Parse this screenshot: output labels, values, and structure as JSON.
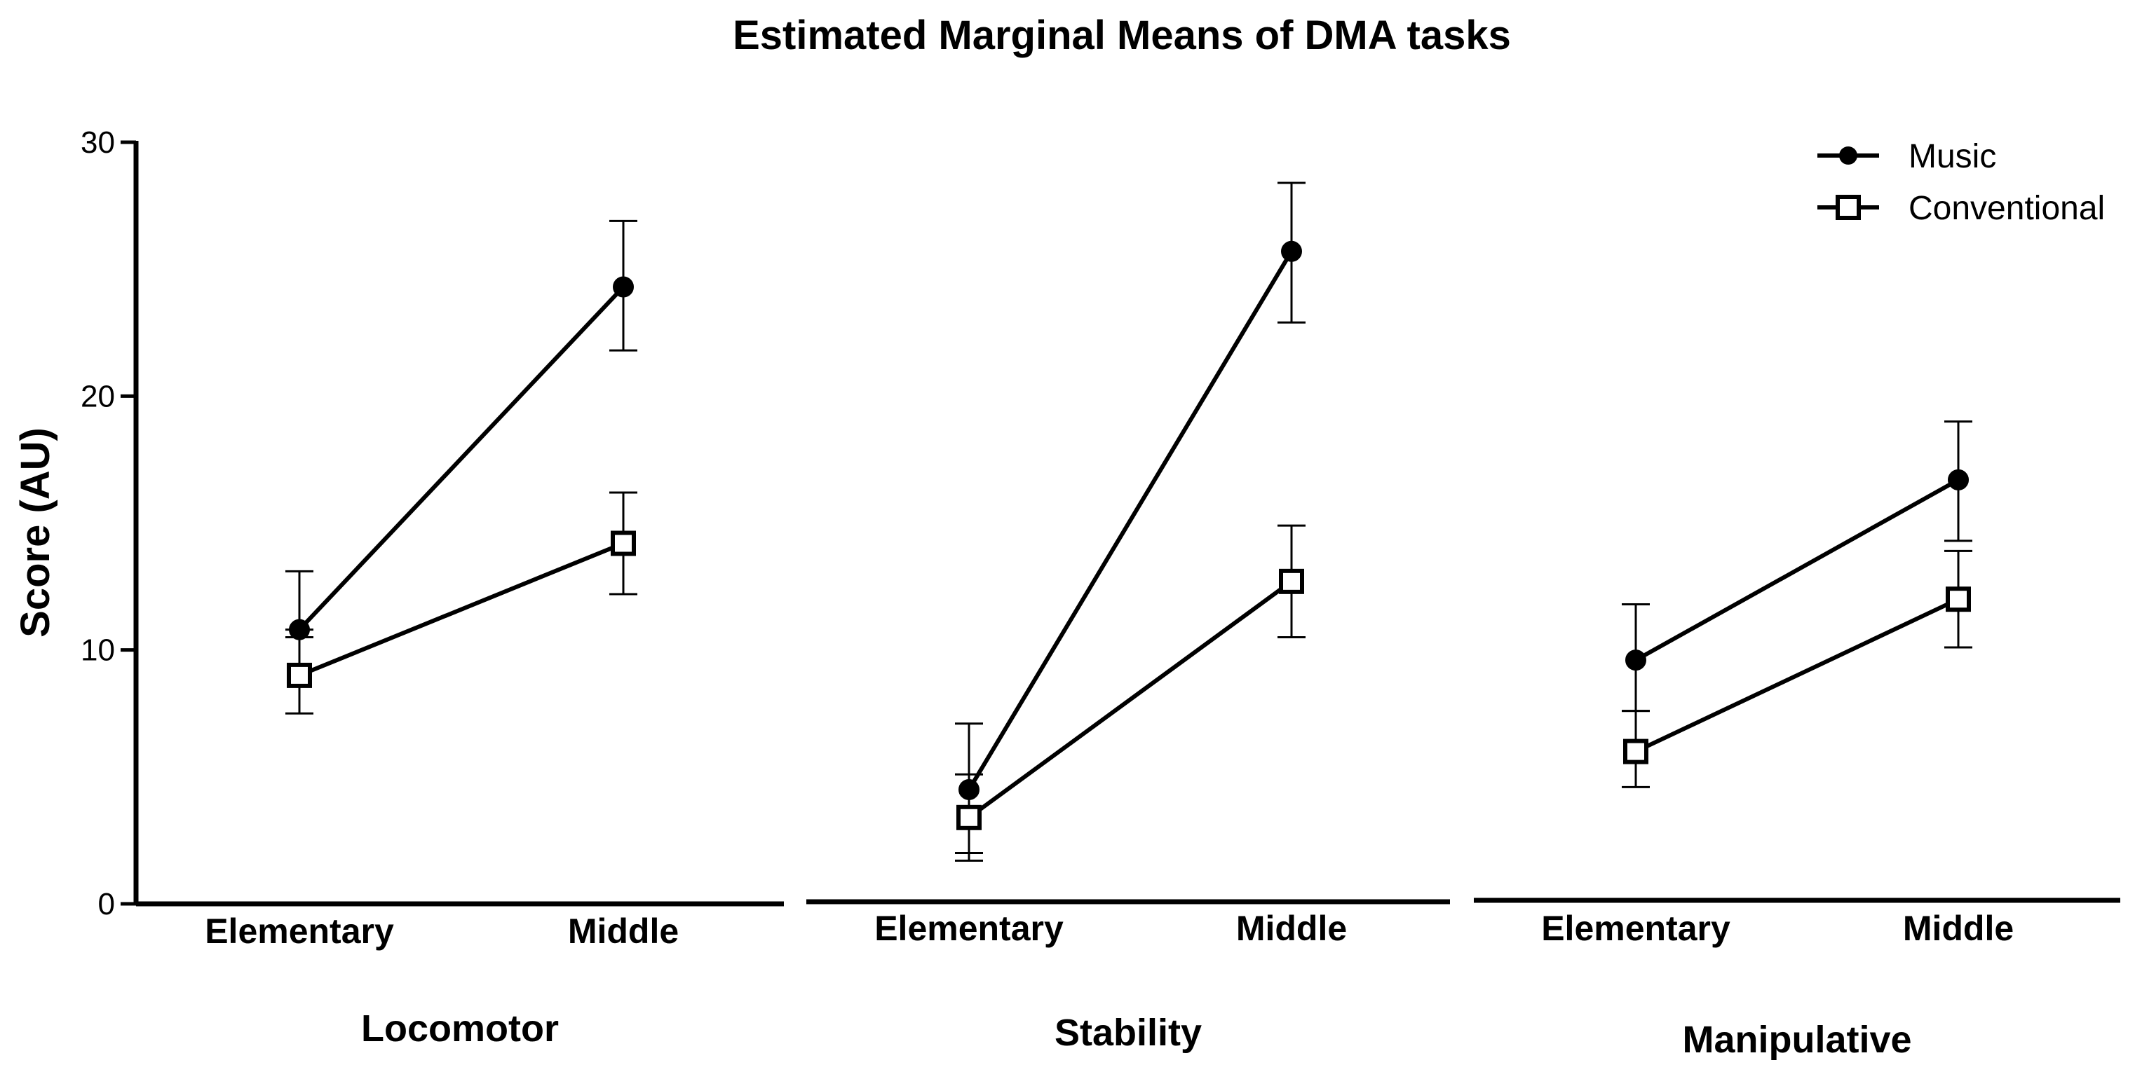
{
  "chart_data": {
    "type": "line",
    "title": "Estimated Marginal Means of DMA tasks",
    "ylabel": "Score (AU)",
    "ylim": [
      0,
      30
    ],
    "yticks": [
      "0",
      "10",
      "20",
      "30"
    ],
    "categories": [
      "Elementary",
      "Middle"
    ],
    "legend_position": "top-right",
    "panels": [
      {
        "name": "Locomotor",
        "series": [
          {
            "name": "Music",
            "values": [
              10.8,
              24.3
            ],
            "error_low": [
              10.8,
              21.8
            ],
            "error_high": [
              13.1,
              26.9
            ]
          },
          {
            "name": "Conventional",
            "values": [
              9.0,
              14.2
            ],
            "error_low": [
              7.5,
              12.2
            ],
            "error_high": [
              10.5,
              16.2
            ]
          }
        ]
      },
      {
        "name": "Stability",
        "series": [
          {
            "name": "Music",
            "values": [
              4.5,
              25.7
            ],
            "error_low": [
              2.0,
              22.9
            ],
            "error_high": [
              7.1,
              28.4
            ]
          },
          {
            "name": "Conventional",
            "values": [
              3.4,
              12.7
            ],
            "error_low": [
              1.7,
              10.5
            ],
            "error_high": [
              5.1,
              14.9
            ]
          }
        ]
      },
      {
        "name": "Manipulative",
        "series": [
          {
            "name": "Music",
            "values": [
              9.6,
              16.7
            ],
            "error_low": [
              7.6,
              14.3
            ],
            "error_high": [
              11.8,
              19.0
            ]
          },
          {
            "name": "Conventional",
            "values": [
              6.0,
              12.0
            ],
            "error_low": [
              4.6,
              10.1
            ],
            "error_high": [
              7.6,
              13.9
            ]
          }
        ]
      }
    ],
    "legend": [
      "Music",
      "Conventional"
    ]
  }
}
